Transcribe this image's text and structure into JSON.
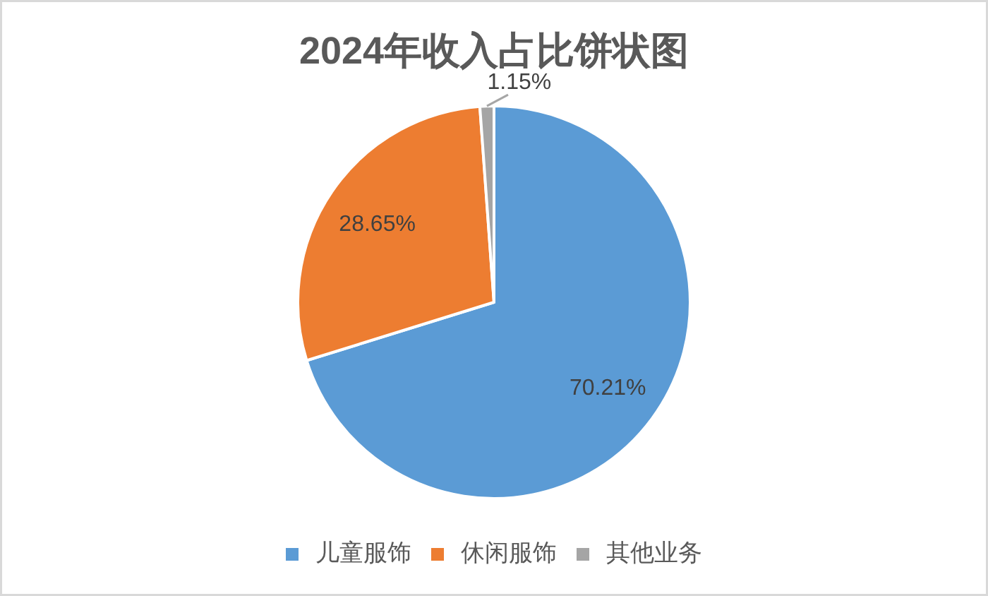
{
  "chart_data": {
    "type": "pie",
    "title": "2024年收入占比饼状图",
    "categories": [
      "儿童服饰",
      "休闲服饰",
      "其他业务"
    ],
    "values": [
      70.21,
      28.65,
      1.15
    ],
    "colors": [
      "#5b9bd5",
      "#ed7d31",
      "#a5a5a5"
    ],
    "value_labels": [
      "70.21%",
      "28.65%",
      "1.15%"
    ],
    "legend": "bottom"
  }
}
